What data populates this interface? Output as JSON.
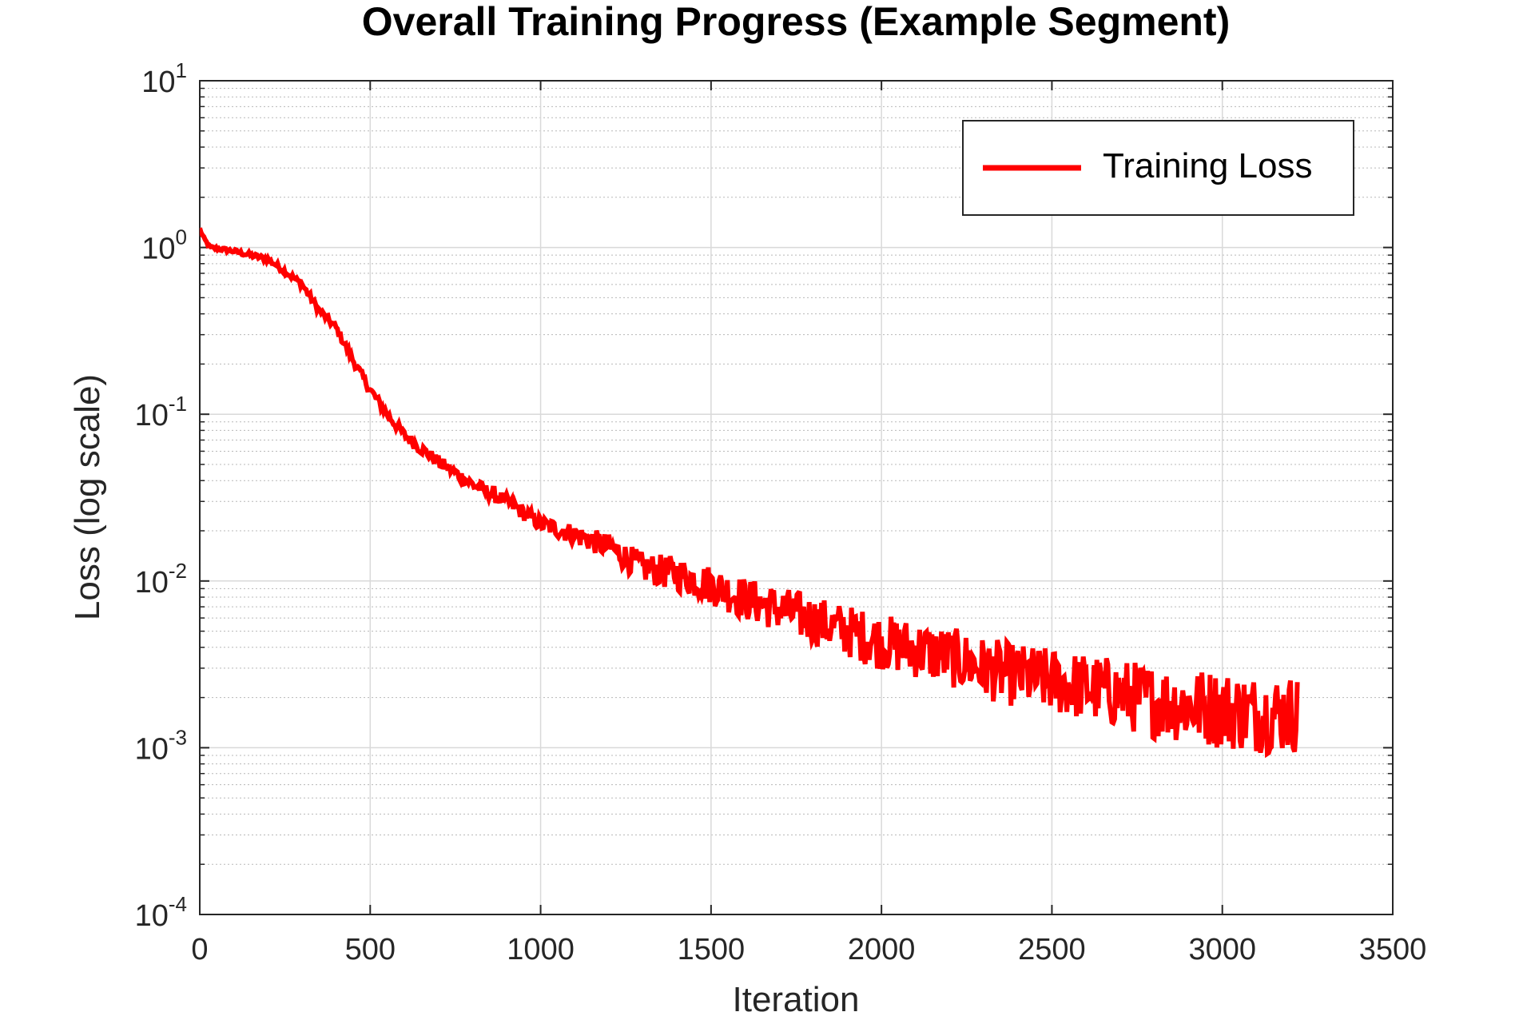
{
  "colors": {
    "series": "#ff0000",
    "grid_major": "#d9d9d9",
    "grid_minor": "#b8b8b8",
    "axis": "#262626"
  },
  "chart_data": {
    "type": "line",
    "title": "Overall Training Progress (Example Segment)",
    "xlabel": "Iteration",
    "ylabel": "Loss (log scale)",
    "xlim": [
      0,
      3500
    ],
    "ylim": [
      0.0001,
      10
    ],
    "yscale": "log",
    "grid": true,
    "minor_grid": true,
    "legend_position": "top-right",
    "x_ticks": [
      "0",
      "500",
      "1000",
      "1500",
      "2000",
      "2500",
      "3000",
      "3500"
    ],
    "x_tick_values": [
      0,
      500,
      1000,
      1500,
      2000,
      2500,
      3000,
      3500
    ],
    "y_ticks": [
      {
        "value": 0.0001,
        "base": "10",
        "exp": "-4"
      },
      {
        "value": 0.001,
        "base": "10",
        "exp": "-3"
      },
      {
        "value": 0.01,
        "base": "10",
        "exp": "-2"
      },
      {
        "value": 0.1,
        "base": "10",
        "exp": "-1"
      },
      {
        "value": 1,
        "base": "10",
        "exp": "0"
      },
      {
        "value": 10,
        "base": "10",
        "exp": "1"
      }
    ],
    "series": [
      {
        "name": "Training Loss",
        "color": "#ff0000",
        "noise_amplitude_log10": [
          [
            0,
            0.01
          ],
          [
            1000,
            0.05
          ],
          [
            1500,
            0.12
          ],
          [
            2000,
            0.17
          ],
          [
            2500,
            0.2
          ],
          [
            3000,
            0.24
          ],
          [
            3220,
            0.24
          ]
        ],
        "trend": [
          [
            0,
            1.3
          ],
          [
            10,
            1.15
          ],
          [
            30,
            1.0
          ],
          [
            100,
            0.95
          ],
          [
            200,
            0.85
          ],
          [
            250,
            0.72
          ],
          [
            300,
            0.6
          ],
          [
            350,
            0.42
          ],
          [
            400,
            0.33
          ],
          [
            450,
            0.21
          ],
          [
            500,
            0.14
          ],
          [
            550,
            0.1
          ],
          [
            600,
            0.075
          ],
          [
            650,
            0.062
          ],
          [
            700,
            0.052
          ],
          [
            800,
            0.038
          ],
          [
            900,
            0.03
          ],
          [
            1000,
            0.022
          ],
          [
            1100,
            0.019
          ],
          [
            1200,
            0.016
          ],
          [
            1300,
            0.012
          ],
          [
            1400,
            0.011
          ],
          [
            1500,
            0.0095
          ],
          [
            1600,
            0.0078
          ],
          [
            1700,
            0.0068
          ],
          [
            1800,
            0.0058
          ],
          [
            1900,
            0.005
          ],
          [
            2000,
            0.0043
          ],
          [
            2100,
            0.0039
          ],
          [
            2200,
            0.0035
          ],
          [
            2300,
            0.003
          ],
          [
            2400,
            0.0027
          ],
          [
            2500,
            0.0025
          ],
          [
            2600,
            0.0023
          ],
          [
            2700,
            0.0021
          ],
          [
            2800,
            0.0019
          ],
          [
            2900,
            0.0018
          ],
          [
            3000,
            0.0017
          ],
          [
            3100,
            0.0016
          ],
          [
            3220,
            0.0016
          ]
        ]
      }
    ]
  }
}
